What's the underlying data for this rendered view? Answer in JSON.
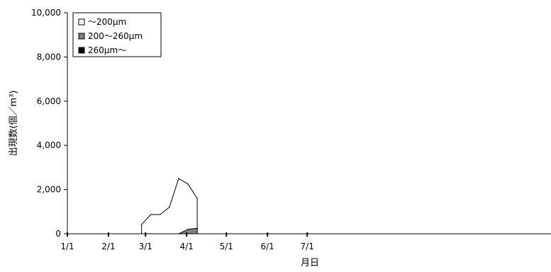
{
  "chart_data": {
    "type": "area",
    "title": "",
    "xlabel": "月日",
    "ylabel": "出現数(個／m³)",
    "ylim": [
      0,
      10000
    ],
    "yticks": [
      0,
      2000,
      4000,
      6000,
      8000,
      10000
    ],
    "ytick_labels": [
      "0",
      "2,000",
      "4,000",
      "6,000",
      "8,000",
      "10,000"
    ],
    "xlim": [
      "1/1",
      "12/31"
    ],
    "xtick_labels": [
      "1/1",
      "2/1",
      "3/1",
      "4/1",
      "5/1",
      "6/1",
      "7/1"
    ],
    "xtick_dates": [
      "01-01",
      "02-01",
      "03-01",
      "04-01",
      "05-01",
      "06-01",
      "07-01"
    ],
    "grid": false,
    "legend_position": "top-left",
    "series": [
      {
        "name": "～200μm",
        "color": "#ffffff",
        "x": [
          "02-26",
          "03-05",
          "03-12",
          "03-19",
          "03-26",
          "04-02",
          "04-09"
        ],
        "values": [
          420,
          870,
          870,
          1200,
          2500,
          2250,
          1600
        ]
      },
      {
        "name": "200～260μm",
        "color": "#808080",
        "x": [
          "03-26",
          "04-02",
          "04-09"
        ],
        "values": [
          0,
          200,
          250
        ]
      },
      {
        "name": "260μm～",
        "color": "#000000",
        "x": [
          "03-26",
          "04-02",
          "04-09"
        ],
        "values": [
          0,
          0,
          0
        ]
      }
    ]
  }
}
